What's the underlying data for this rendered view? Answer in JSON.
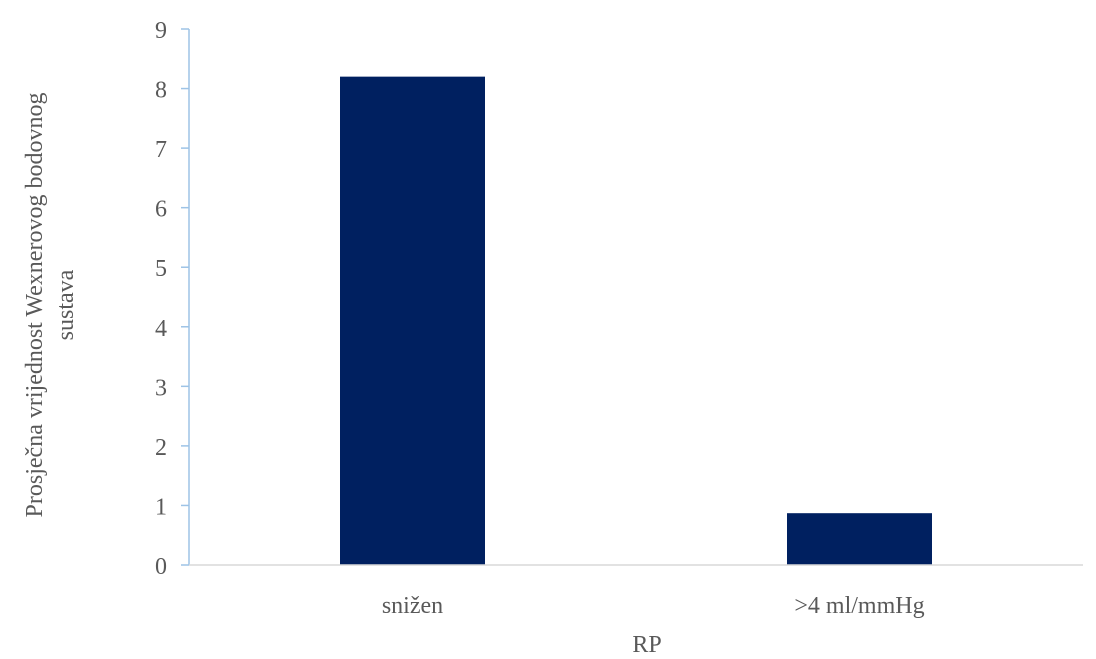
{
  "chart_data": {
    "type": "bar",
    "categories": [
      "snižen",
      ">4 ml/mmHg"
    ],
    "values": [
      8.2,
      0.87
    ],
    "xlabel": "RP",
    "ylabel_lines": [
      "Prosječna vrijednost Wexnerovog bodovnog",
      "sustava"
    ],
    "ylim": [
      0,
      9
    ],
    "yticks": [
      0,
      1,
      2,
      3,
      4,
      5,
      6,
      7,
      8,
      9
    ],
    "grid": false,
    "legend": "none",
    "colors": {
      "bar": "#002060",
      "axis": "#9DC3E6",
      "text": "#595959"
    }
  }
}
